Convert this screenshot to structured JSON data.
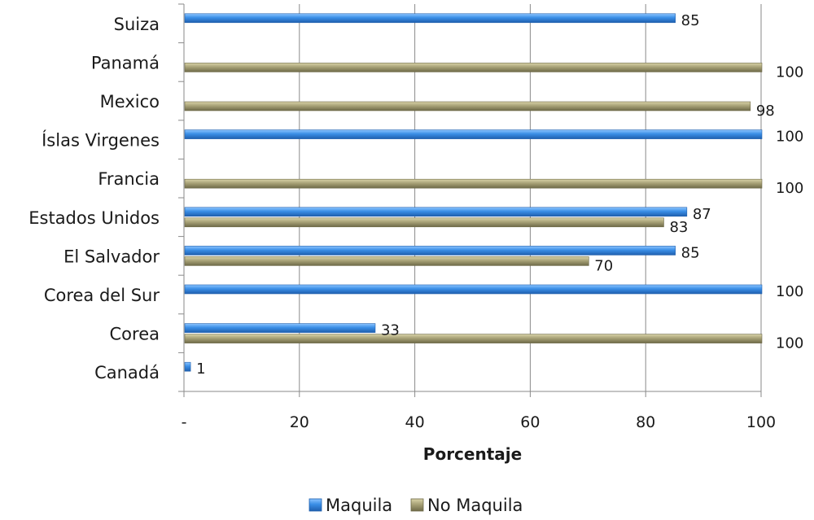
{
  "chart_data": {
    "type": "bar",
    "orientation": "horizontal",
    "categories": [
      "Suiza",
      "Panamá",
      "Mexico",
      "Íslas Virgenes",
      "Francia",
      "Estados Unidos",
      "El Salvador",
      "Corea del Sur",
      "Corea",
      "Canadá"
    ],
    "series": [
      {
        "name": "Maquila",
        "color": "#3a8ee6",
        "values": [
          85,
          null,
          null,
          100,
          null,
          87,
          85,
          100,
          33,
          1
        ],
        "labels": [
          "85",
          "",
          "",
          "100",
          "",
          "87",
          "85",
          "100",
          "33",
          "1"
        ]
      },
      {
        "name": "No Maquila",
        "color": "#a8a277",
        "values": [
          null,
          100,
          98,
          null,
          100,
          83,
          70,
          null,
          100,
          null
        ],
        "labels": [
          "",
          "100",
          "98",
          "",
          "100",
          "83",
          "70",
          "",
          "100",
          ""
        ]
      }
    ],
    "xlabel": "Porcentaje",
    "xlim": [
      0,
      100
    ],
    "x_ticks": [
      "-",
      "20",
      "40",
      "60",
      "80",
      "100"
    ],
    "grid": true,
    "legend_position": "bottom"
  }
}
